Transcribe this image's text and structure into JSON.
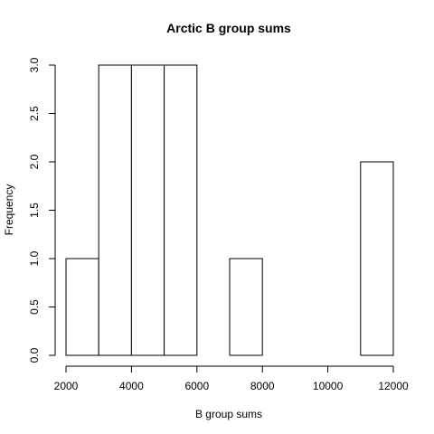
{
  "chart_data": {
    "type": "bar",
    "title": "Arctic B group sums",
    "xlabel": "B group sums",
    "ylabel": "Frequency",
    "bins": [
      {
        "start": 2000,
        "end": 3000,
        "count": 1
      },
      {
        "start": 3000,
        "end": 4000,
        "count": 3
      },
      {
        "start": 4000,
        "end": 5000,
        "count": 3
      },
      {
        "start": 5000,
        "end": 6000,
        "count": 3
      },
      {
        "start": 6000,
        "end": 7000,
        "count": 0
      },
      {
        "start": 7000,
        "end": 8000,
        "count": 1
      },
      {
        "start": 8000,
        "end": 9000,
        "count": 0
      },
      {
        "start": 9000,
        "end": 10000,
        "count": 0
      },
      {
        "start": 10000,
        "end": 11000,
        "count": 0
      },
      {
        "start": 11000,
        "end": 12000,
        "count": 2
      }
    ],
    "xlim": [
      2000,
      12000
    ],
    "ylim": [
      0,
      3
    ],
    "x_ticks": [
      2000,
      4000,
      6000,
      8000,
      10000,
      12000
    ],
    "x_tick_labels": [
      "2000",
      "4000",
      "6000",
      "8000",
      "10000",
      "12000"
    ],
    "y_ticks": [
      0,
      0.5,
      1,
      1.5,
      2,
      2.5,
      3
    ],
    "y_tick_labels": [
      "0.0",
      "0.5",
      "1.0",
      "1.5",
      "2.0",
      "2.5",
      "3.0"
    ],
    "grid": false,
    "legend": "none"
  }
}
